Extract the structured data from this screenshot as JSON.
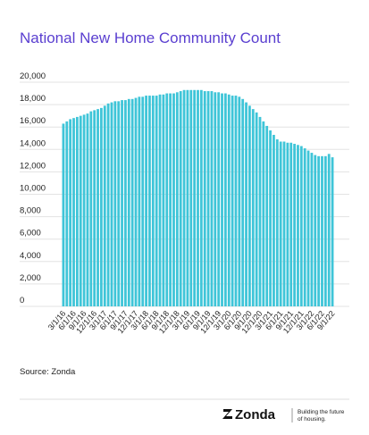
{
  "chart_data": {
    "type": "bar",
    "title": "National New Home Community Count",
    "categories": [
      "3/1/16",
      null,
      null,
      "6/1/16",
      null,
      null,
      "9/1/16",
      null,
      null,
      "12/1/16",
      null,
      null,
      "3/1/17",
      null,
      null,
      "6/1/17",
      null,
      null,
      "9/1/17",
      null,
      null,
      "12/1/17",
      null,
      null,
      "3/1/18",
      null,
      null,
      "6/1/18",
      null,
      null,
      "9/1/18",
      null,
      null,
      "12/1/18",
      null,
      null,
      "3/1/19",
      null,
      null,
      "6/1/19",
      null,
      null,
      "9/1/19",
      null,
      null,
      "12/1/19",
      null,
      null,
      "3/1/20",
      null,
      null,
      "6/1/20",
      null,
      null,
      "9/1/20",
      null,
      null,
      "12/1/20",
      null,
      null,
      "3/1/21",
      null,
      null,
      "6/1/21",
      null,
      null,
      "9/1/21",
      null,
      null,
      "12/1/21",
      null,
      null,
      "3/1/22",
      null,
      null,
      "6/1/22",
      null,
      null,
      "9/1/22"
    ],
    "values": [
      16300,
      16500,
      16700,
      16800,
      16900,
      17000,
      17100,
      17200,
      17400,
      17500,
      17600,
      17700,
      17900,
      18100,
      18200,
      18300,
      18300,
      18400,
      18400,
      18500,
      18500,
      18600,
      18700,
      18700,
      18800,
      18800,
      18800,
      18800,
      18900,
      18900,
      19000,
      19000,
      19000,
      19100,
      19200,
      19300,
      19300,
      19300,
      19300,
      19300,
      19300,
      19200,
      19200,
      19200,
      19100,
      19100,
      19000,
      19000,
      18900,
      18800,
      18800,
      18700,
      18500,
      18200,
      17900,
      17600,
      17300,
      16900,
      16500,
      16100,
      15700,
      15300,
      14900,
      14700,
      14700,
      14600,
      14600,
      14500,
      14400,
      14300,
      14100,
      13900,
      13700,
      13500,
      13400,
      13400,
      13400,
      13600,
      13300
    ],
    "color": "#3fc5d8",
    "ylim": [
      0,
      20000
    ],
    "yticks": [
      0,
      {
        "value": 2000,
        "label": "2,000"
      },
      {
        "value": 4000,
        "label": "4,000"
      },
      {
        "value": 6000,
        "label": "6,000"
      },
      {
        "value": 8000,
        "label": "8,000"
      },
      {
        "value": 10000,
        "label": "10,000"
      },
      {
        "value": 12000,
        "label": "12,000"
      },
      {
        "value": 14000,
        "label": "14,000"
      },
      {
        "value": 16000,
        "label": "16,000"
      },
      {
        "value": 18000,
        "label": "18,000"
      },
      {
        "value": 20000,
        "label": "20,000"
      }
    ],
    "grid": true,
    "source": "Source: Zonda",
    "brand": "Zonda",
    "tagline": [
      "Building the future",
      "of housing."
    ]
  }
}
